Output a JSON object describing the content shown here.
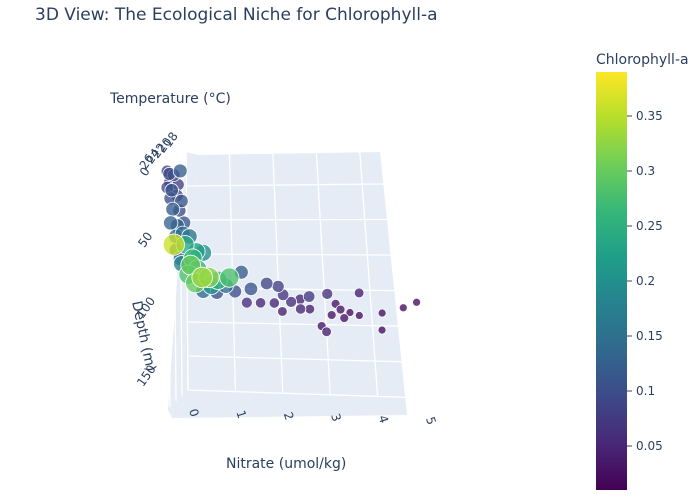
{
  "chart_data": {
    "type": "scatter",
    "subtype": "3d-scatter",
    "title": "3D View: The Ecological Niche for Chlorophyll-a",
    "axes": {
      "x": {
        "label": "Nitrate (umol/kg)",
        "range": [
          0,
          5
        ],
        "ticks": [
          "0",
          "1",
          "2",
          "3",
          "4",
          "5"
        ]
      },
      "y": {
        "label": "Temperature (°C)",
        "range": [
          18,
          26
        ],
        "ticks": [
          "18",
          "20",
          "22",
          "24",
          "26"
        ]
      },
      "z": {
        "label": "Depth (m)",
        "range": [
          0,
          175
        ],
        "reversed": true,
        "ticks": [
          "0",
          "50",
          "100",
          "150"
        ]
      }
    },
    "colorbar": {
      "title": "Chlorophyll-a",
      "range": [
        0.01,
        0.39
      ],
      "ticks": [
        "0.05",
        "0.1",
        "0.15",
        "0.2",
        "0.25",
        "0.3",
        "0.35"
      ],
      "tick_values": [
        0.05,
        0.1,
        0.15,
        0.2,
        0.25,
        0.3,
        0.35
      ],
      "colorscale": "Viridis"
    },
    "marker_size_encodes": "Chlorophyll-a",
    "points": [
      {
        "nitrate": 0.05,
        "depth": 0,
        "temperature": 25,
        "chl": 0.08
      },
      {
        "nitrate": 0.1,
        "depth": 2,
        "temperature": 25,
        "chl": 0.1
      },
      {
        "nitrate": 0.2,
        "depth": 3,
        "temperature": 25,
        "chl": 0.09
      },
      {
        "nitrate": 0.35,
        "depth": 0,
        "temperature": 25,
        "chl": 0.12
      },
      {
        "nitrate": 0.1,
        "depth": 8,
        "temperature": 25,
        "chl": 0.07
      },
      {
        "nitrate": 0.05,
        "depth": 12,
        "temperature": 25,
        "chl": 0.09
      },
      {
        "nitrate": 0.15,
        "depth": 14,
        "temperature": 25,
        "chl": 0.11
      },
      {
        "nitrate": 0.3,
        "depth": 10,
        "temperature": 25,
        "chl": 0.08
      },
      {
        "nitrate": 0.05,
        "depth": 22,
        "temperature": 24,
        "chl": 0.1
      },
      {
        "nitrate": 0.2,
        "depth": 20,
        "temperature": 24,
        "chl": 0.09
      },
      {
        "nitrate": 0.3,
        "depth": 24,
        "temperature": 24,
        "chl": 0.11
      },
      {
        "nitrate": 0.1,
        "depth": 30,
        "temperature": 24,
        "chl": 0.12
      },
      {
        "nitrate": 0.25,
        "depth": 31,
        "temperature": 24,
        "chl": 0.1
      },
      {
        "nitrate": 0.05,
        "depth": 40,
        "temperature": 24,
        "chl": 0.13
      },
      {
        "nitrate": 0.2,
        "depth": 42,
        "temperature": 24,
        "chl": 0.12
      },
      {
        "nitrate": 0.35,
        "depth": 40,
        "temperature": 24,
        "chl": 0.11
      },
      {
        "nitrate": 0.1,
        "depth": 52,
        "temperature": 23,
        "chl": 0.14
      },
      {
        "nitrate": 0.25,
        "depth": 50,
        "temperature": 23,
        "chl": 0.15
      },
      {
        "nitrate": 0.4,
        "depth": 52,
        "temperature": 23,
        "chl": 0.16
      },
      {
        "nitrate": 0.05,
        "depth": 58,
        "temperature": 23,
        "chl": 0.36
      },
      {
        "nitrate": 0.3,
        "depth": 58,
        "temperature": 23,
        "chl": 0.24
      },
      {
        "nitrate": 0.1,
        "depth": 62,
        "temperature": 23,
        "chl": 0.12
      },
      {
        "nitrate": 0.55,
        "depth": 63,
        "temperature": 23,
        "chl": 0.22
      },
      {
        "nitrate": 0.7,
        "depth": 64,
        "temperature": 23,
        "chl": 0.2
      },
      {
        "nitrate": 0.2,
        "depth": 68,
        "temperature": 23,
        "chl": 0.15
      },
      {
        "nitrate": 0.4,
        "depth": 70,
        "temperature": 22,
        "chl": 0.26
      },
      {
        "nitrate": 0.15,
        "depth": 74,
        "temperature": 22,
        "chl": 0.18
      },
      {
        "nitrate": 0.35,
        "depth": 75,
        "temperature": 22,
        "chl": 0.3
      },
      {
        "nitrate": 0.5,
        "depth": 78,
        "temperature": 22,
        "chl": 0.26
      },
      {
        "nitrate": 0.3,
        "depth": 82,
        "temperature": 22,
        "chl": 0.28
      },
      {
        "nitrate": 0.6,
        "depth": 84,
        "temperature": 22,
        "chl": 0.33
      },
      {
        "nitrate": 0.75,
        "depth": 84,
        "temperature": 22,
        "chl": 0.32
      },
      {
        "nitrate": 0.45,
        "depth": 88,
        "temperature": 22,
        "chl": 0.3
      },
      {
        "nitrate": 0.95,
        "depth": 86,
        "temperature": 22,
        "chl": 0.25
      },
      {
        "nitrate": 1.2,
        "depth": 84,
        "temperature": 22,
        "chl": 0.28
      },
      {
        "nitrate": 0.8,
        "depth": 90,
        "temperature": 22,
        "chl": 0.22
      },
      {
        "nitrate": 1.4,
        "depth": 82,
        "temperature": 21,
        "chl": 0.12
      },
      {
        "nitrate": 1.05,
        "depth": 92,
        "temperature": 21,
        "chl": 0.15
      },
      {
        "nitrate": 0.55,
        "depth": 96,
        "temperature": 21,
        "chl": 0.14
      },
      {
        "nitrate": 0.85,
        "depth": 97,
        "temperature": 21,
        "chl": 0.11
      },
      {
        "nitrate": 1.25,
        "depth": 96,
        "temperature": 21,
        "chl": 0.1
      },
      {
        "nitrate": 1.6,
        "depth": 94,
        "temperature": 21,
        "chl": 0.11
      },
      {
        "nitrate": 1.95,
        "depth": 90,
        "temperature": 21,
        "chl": 0.09
      },
      {
        "nitrate": 2.2,
        "depth": 92,
        "temperature": 21,
        "chl": 0.08
      },
      {
        "nitrate": 2.3,
        "depth": 98,
        "temperature": 21,
        "chl": 0.07
      },
      {
        "nitrate": 1.5,
        "depth": 104,
        "temperature": 21,
        "chl": 0.06
      },
      {
        "nitrate": 1.8,
        "depth": 104,
        "temperature": 21,
        "chl": 0.05
      },
      {
        "nitrate": 2.1,
        "depth": 104,
        "temperature": 21,
        "chl": 0.05
      },
      {
        "nitrate": 2.4,
        "depth": 105,
        "temperature": 20,
        "chl": 0.06
      },
      {
        "nitrate": 2.6,
        "depth": 103,
        "temperature": 20,
        "chl": 0.05
      },
      {
        "nitrate": 2.8,
        "depth": 101,
        "temperature": 20,
        "chl": 0.07
      },
      {
        "nitrate": 3.2,
        "depth": 99,
        "temperature": 20,
        "chl": 0.06
      },
      {
        "nitrate": 3.9,
        "depth": 98,
        "temperature": 20,
        "chl": 0.04
      },
      {
        "nitrate": 2.2,
        "depth": 112,
        "temperature": 20,
        "chl": 0.04
      },
      {
        "nitrate": 2.6,
        "depth": 110,
        "temperature": 20,
        "chl": 0.05
      },
      {
        "nitrate": 2.8,
        "depth": 110,
        "temperature": 20,
        "chl": 0.04
      },
      {
        "nitrate": 3.3,
        "depth": 108,
        "temperature": 19,
        "chl": 0.03
      },
      {
        "nitrate": 3.4,
        "depth": 112,
        "temperature": 19,
        "chl": 0.03
      },
      {
        "nitrate": 3.6,
        "depth": 114,
        "temperature": 19,
        "chl": 0.02
      },
      {
        "nitrate": 3.2,
        "depth": 116,
        "temperature": 19,
        "chl": 0.03
      },
      {
        "nitrate": 3.8,
        "depth": 116,
        "temperature": 19,
        "chl": 0.02
      },
      {
        "nitrate": 4.3,
        "depth": 114,
        "temperature": 19,
        "chl": 0.02
      },
      {
        "nitrate": 4.7,
        "depth": 112,
        "temperature": 18,
        "chl": 0.02
      },
      {
        "nitrate": 5.0,
        "depth": 108,
        "temperature": 18,
        "chl": 0.02
      },
      {
        "nitrate": 3.4,
        "depth": 120,
        "temperature": 18,
        "chl": 0.03
      },
      {
        "nitrate": 2.9,
        "depth": 126,
        "temperature": 18,
        "chl": 0.03
      },
      {
        "nitrate": 3.0,
        "depth": 130,
        "temperature": 18,
        "chl": 0.04
      },
      {
        "nitrate": 4.2,
        "depth": 128,
        "temperature": 18,
        "chl": 0.02
      }
    ]
  }
}
